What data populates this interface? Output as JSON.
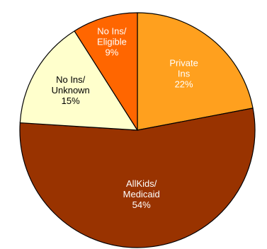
{
  "chart_data": {
    "type": "pie",
    "title": "",
    "slices": [
      {
        "label_lines": [
          "Private",
          "Ins",
          "22%"
        ],
        "value": 22,
        "color": "#FFA01E",
        "text_color": "#FFFFFF"
      },
      {
        "label_lines": [
          "AllKids/",
          "Medicaid",
          "54%"
        ],
        "value": 54,
        "color": "#993300",
        "text_color": "#FFFFFF"
      },
      {
        "label_lines": [
          "No Ins/",
          "Unknown",
          "15%"
        ],
        "value": 15,
        "color": "#FFFFCC",
        "text_color": "#000000"
      },
      {
        "label_lines": [
          "No Ins/",
          "Eligible",
          "9%"
        ],
        "value": 9,
        "color": "#FF6600",
        "text_color": "#FFFFFF"
      }
    ],
    "legend": "none"
  }
}
